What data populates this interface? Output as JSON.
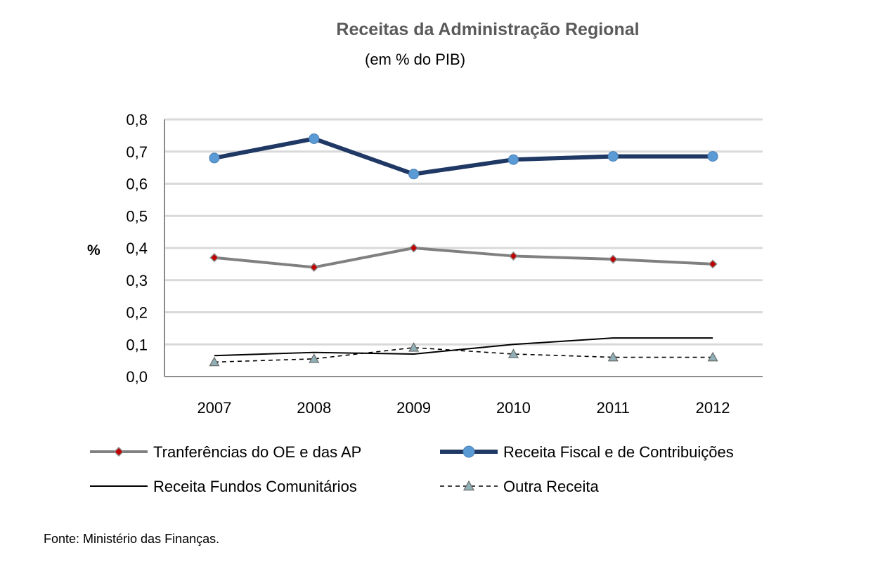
{
  "chart_data": {
    "type": "line",
    "title": "Receitas da Administração Regional",
    "subtitle": "(em % do PIB)",
    "ylabel": "%",
    "xlabel": "",
    "ylim": [
      0,
      0.8
    ],
    "yticks": [
      "0,0",
      "0,1",
      "0,2",
      "0,3",
      "0,4",
      "0,5",
      "0,6",
      "0,7",
      "0,8"
    ],
    "categories": [
      "2007",
      "2008",
      "2009",
      "2010",
      "2011",
      "2012"
    ],
    "grid": true,
    "series": [
      {
        "name": "Tranferências do OE e das AP",
        "values": [
          0.37,
          0.34,
          0.4,
          0.375,
          0.365,
          0.35
        ],
        "color": "#808080",
        "marker": "diamond",
        "marker_color": "#c00000",
        "style": "solid"
      },
      {
        "name": "Receita Fiscal e de Contribuições",
        "values": [
          0.68,
          0.74,
          0.63,
          0.675,
          0.685,
          0.685
        ],
        "color": "#1f3864",
        "marker": "circle",
        "marker_color": "#5b9bd5",
        "style": "solid"
      },
      {
        "name": "Receita Fundos Comunitários",
        "values": [
          0.065,
          0.075,
          0.07,
          0.1,
          0.12,
          0.12
        ],
        "color": "#000000",
        "marker": "none",
        "style": "solid"
      },
      {
        "name": "Outra Receita",
        "values": [
          0.045,
          0.055,
          0.09,
          0.07,
          0.06,
          0.06
        ],
        "color": "#000000",
        "marker": "triangle",
        "marker_color": "#8fb0b7",
        "style": "dashed"
      }
    ],
    "legend_position": "bottom"
  },
  "footer": {
    "source": "Fonte: Ministério das Finanças."
  }
}
